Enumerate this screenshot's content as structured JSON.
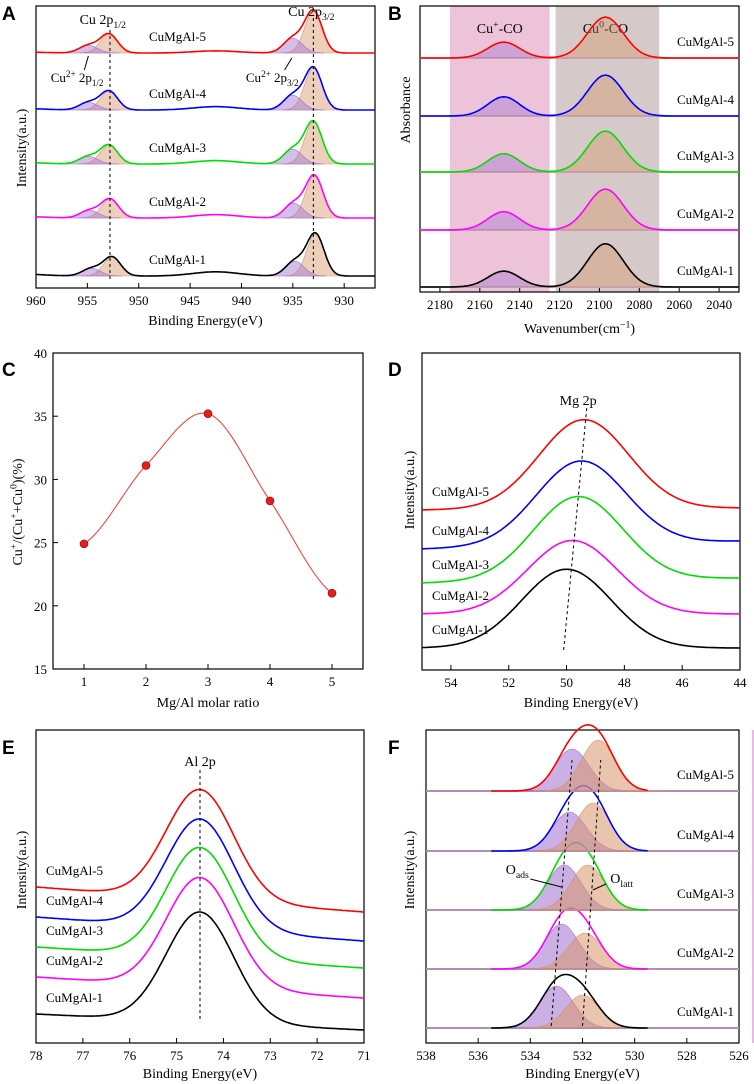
{
  "figure": {
    "panels": [
      {
        "id": "A",
        "label": "A"
      },
      {
        "id": "B",
        "label": "B"
      },
      {
        "id": "C",
        "label": "C"
      },
      {
        "id": "D",
        "label": "D"
      },
      {
        "id": "E",
        "label": "E"
      },
      {
        "id": "F",
        "label": "F"
      }
    ]
  },
  "colors": {
    "CuMgAl-1": "#000000",
    "CuMgAl-2": "#ff00ff",
    "CuMgAl-3": "#00dd00",
    "CuMgAl-4": "#0000ff",
    "CuMgAl-5": "#ff0000",
    "fill_cu_plus": "#a070d0",
    "fill_cu_zero": "#d8956a",
    "band_cu_plus": "#e9b4cf",
    "band_cu_zero": "#cfc0c0"
  },
  "chart_data": [
    {
      "panel": "A",
      "type": "line",
      "title": "",
      "xlabel": "Binding Energy(eV)",
      "ylabel": "Intensity(a.u.)",
      "xlim": [
        960,
        927
      ],
      "xticks": [
        960,
        955,
        950,
        945,
        940,
        935,
        930
      ],
      "series": [
        {
          "name": "CuMgAl-1",
          "peaks": [
            {
              "center": 932.8,
              "height": 1.0
            },
            {
              "center": 934.8,
              "height": 0.35
            },
            {
              "center": 952.6,
              "height": 0.45
            },
            {
              "center": 954.6,
              "height": 0.18
            }
          ],
          "satellite_height": 0.1
        },
        {
          "name": "CuMgAl-2",
          "peaks": [
            {
              "center": 932.9,
              "height": 1.0
            },
            {
              "center": 934.9,
              "height": 0.35
            },
            {
              "center": 952.8,
              "height": 0.45
            },
            {
              "center": 954.8,
              "height": 0.18
            }
          ],
          "satellite_height": 0.08
        },
        {
          "name": "CuMgAl-3",
          "peaks": [
            {
              "center": 933.0,
              "height": 1.0
            },
            {
              "center": 935.0,
              "height": 0.35
            },
            {
              "center": 952.9,
              "height": 0.45
            },
            {
              "center": 954.9,
              "height": 0.18
            }
          ],
          "satellite_height": 0.08
        },
        {
          "name": "CuMgAl-4",
          "peaks": [
            {
              "center": 933.0,
              "height": 1.0
            },
            {
              "center": 935.0,
              "height": 0.35
            },
            {
              "center": 952.9,
              "height": 0.45
            },
            {
              "center": 954.9,
              "height": 0.18
            }
          ],
          "satellite_height": 0.08
        },
        {
          "name": "CuMgAl-5",
          "peaks": [
            {
              "center": 933.0,
              "height": 1.0
            },
            {
              "center": 935.0,
              "height": 0.35
            },
            {
              "center": 952.9,
              "height": 0.45
            },
            {
              "center": 954.9,
              "height": 0.18
            }
          ],
          "satellite_height": 0.05
        }
      ],
      "annotations": [
        {
          "text": "Cu 2p",
          "sub": "1/2",
          "sup": ""
        },
        {
          "text": "Cu 2p",
          "sub": "3/2",
          "sup": ""
        },
        {
          "text": "Cu",
          "sup": "2+",
          "tail": " 2p",
          "sub": "1/2"
        },
        {
          "text": "Cu",
          "sup": "2+",
          "tail": " 2p",
          "sub": "3/2"
        }
      ]
    },
    {
      "panel": "B",
      "type": "line",
      "title": "",
      "xlabel": "Wavenumber(cm",
      "xlabel_sup": "−1",
      "xlabel_end": ")",
      "ylabel": "Absorbance",
      "xlim": [
        2190,
        2030
      ],
      "xticks": [
        2180,
        2160,
        2140,
        2120,
        2100,
        2080,
        2060,
        2040
      ],
      "bands": [
        {
          "label": "Cu",
          "sup": "+",
          "tail": "-CO",
          "from": 2175,
          "to": 2125
        },
        {
          "label": "Cu",
          "sup": "0",
          "tail": "-CO",
          "from": 2122,
          "to": 2070
        }
      ],
      "series": [
        {
          "name": "CuMgAl-1",
          "peaks": [
            {
              "center": 2148,
              "height": 0.33
            },
            {
              "center": 2097,
              "height": 0.9
            }
          ]
        },
        {
          "name": "CuMgAl-2",
          "peaks": [
            {
              "center": 2148,
              "height": 0.38
            },
            {
              "center": 2097,
              "height": 0.85
            }
          ]
        },
        {
          "name": "CuMgAl-3",
          "peaks": [
            {
              "center": 2148,
              "height": 0.38
            },
            {
              "center": 2097,
              "height": 0.85
            }
          ]
        },
        {
          "name": "CuMgAl-4",
          "peaks": [
            {
              "center": 2148,
              "height": 0.4
            },
            {
              "center": 2097,
              "height": 0.85
            }
          ]
        },
        {
          "name": "CuMgAl-5",
          "peaks": [
            {
              "center": 2148,
              "height": 0.33
            },
            {
              "center": 2097,
              "height": 0.85
            }
          ]
        }
      ]
    },
    {
      "panel": "C",
      "type": "scatter",
      "title": "",
      "xlabel": "Mg/Al molar ratio",
      "ylabel": "Cu+/(Cu++Cu0)(%)",
      "ylabel_parts": [
        "Cu",
        "+",
        "/(Cu",
        "+",
        "+Cu",
        "0",
        ")(%)"
      ],
      "xlim": [
        0.5,
        5.5
      ],
      "ylim": [
        15,
        40
      ],
      "xticks": [
        1,
        2,
        3,
        4,
        5
      ],
      "yticks": [
        15,
        20,
        25,
        30,
        35,
        40
      ],
      "x": [
        1,
        2,
        3,
        4,
        5
      ],
      "y": [
        24.9,
        31.1,
        35.2,
        28.3,
        21.0
      ]
    },
    {
      "panel": "D",
      "type": "line",
      "title": "",
      "xlabel": "Binding Energy(eV)",
      "ylabel": "Intensity(a.u.)",
      "xlim": [
        55,
        44
      ],
      "xticks": [
        54,
        52,
        50,
        48,
        46,
        44
      ],
      "annotation": "Mg 2p",
      "series": [
        {
          "name": "CuMgAl-1",
          "center": 50.0,
          "height": 0.75,
          "base_left": 0.0,
          "base_right": 0.0
        },
        {
          "name": "CuMgAl-2",
          "center": 49.8,
          "height": 0.7,
          "base_left": 0.05,
          "base_right": 0.0
        },
        {
          "name": "CuMgAl-3",
          "center": 49.6,
          "height": 0.8,
          "base_left": 0.05,
          "base_right": 0.0
        },
        {
          "name": "CuMgAl-4",
          "center": 49.5,
          "height": 0.8,
          "base_left": 0.05,
          "base_right": 0.0
        },
        {
          "name": "CuMgAl-5",
          "center": 49.4,
          "height": 0.85,
          "base_left": 0.05,
          "base_right": 0.0
        }
      ]
    },
    {
      "panel": "E",
      "type": "line",
      "title": "",
      "xlabel": "Binding Energy(eV)",
      "ylabel": "Intensity(a.u.)",
      "xlim": [
        78,
        71
      ],
      "xticks": [
        78,
        77,
        76,
        75,
        74,
        73,
        72,
        71
      ],
      "annotation": "Al 2p",
      "series": [
        {
          "name": "CuMgAl-1",
          "center": 74.5,
          "height": 1.0
        },
        {
          "name": "CuMgAl-2",
          "center": 74.5,
          "height": 1.0
        },
        {
          "name": "CuMgAl-3",
          "center": 74.5,
          "height": 1.0
        },
        {
          "name": "CuMgAl-4",
          "center": 74.5,
          "height": 1.0
        },
        {
          "name": "CuMgAl-5",
          "center": 74.5,
          "height": 1.0
        }
      ]
    },
    {
      "panel": "F",
      "type": "line",
      "title": "",
      "xlabel": "Binding Energy(eV)",
      "ylabel": "Intensity(a.u.)",
      "xlim": [
        538,
        526
      ],
      "xticks": [
        538,
        536,
        534,
        532,
        530,
        528,
        526
      ],
      "annotations": [
        {
          "text": "O",
          "sub": "ads"
        },
        {
          "text": "O",
          "sub": "latt"
        }
      ],
      "series": [
        {
          "name": "CuMgAl-1",
          "o_ads": {
            "center": 533.0,
            "height": 0.7
          },
          "o_latt": {
            "center": 532.0,
            "height": 0.55
          }
        },
        {
          "name": "CuMgAl-2",
          "o_ads": {
            "center": 532.8,
            "height": 0.75
          },
          "o_latt": {
            "center": 531.9,
            "height": 0.6
          }
        },
        {
          "name": "CuMgAl-3",
          "o_ads": {
            "center": 532.7,
            "height": 0.75
          },
          "o_latt": {
            "center": 531.8,
            "height": 0.75
          }
        },
        {
          "name": "CuMgAl-4",
          "o_ads": {
            "center": 532.5,
            "height": 0.65
          },
          "o_latt": {
            "center": 531.6,
            "height": 0.8
          }
        },
        {
          "name": "CuMgAl-5",
          "o_ads": {
            "center": 532.4,
            "height": 0.7
          },
          "o_latt": {
            "center": 531.4,
            "height": 0.85
          }
        }
      ]
    }
  ]
}
